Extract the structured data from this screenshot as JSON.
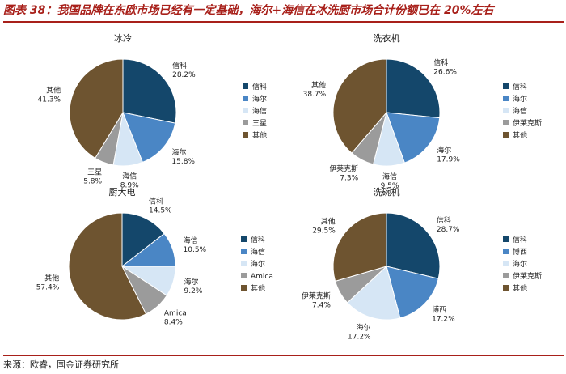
{
  "figure": {
    "title": "图表 38：我国品牌在东欧市场已经有一定基础，海尔+海信在冰洗厨市场合计份额已在 20%左右",
    "source": "来源：欧睿，国金证券研究所"
  },
  "chart_data": [
    {
      "type": "pie",
      "title": "冰冷",
      "slices": [
        {
          "label": "信科",
          "value": 28.2,
          "display": "28.2%",
          "color": "#14476b"
        },
        {
          "label": "海尔",
          "value": 15.8,
          "display": "15.8%",
          "color": "#4a86c5"
        },
        {
          "label": "海信",
          "value": 8.9,
          "display": "8.9%",
          "color": "#d6e6f5"
        },
        {
          "label": "三星",
          "value": 5.8,
          "display": "5.8%",
          "color": "#9b9b9b"
        },
        {
          "label": "其他",
          "value": 41.3,
          "display": "41.3%",
          "color": "#6e5430"
        }
      ],
      "legend": [
        "信科",
        "海尔",
        "海信",
        "三星",
        "其他"
      ]
    },
    {
      "type": "pie",
      "title": "洗衣机",
      "slices": [
        {
          "label": "信科",
          "value": 26.6,
          "display": "26.6%",
          "color": "#14476b"
        },
        {
          "label": "海尔",
          "value": 17.9,
          "display": "17.9%",
          "color": "#4a86c5"
        },
        {
          "label": "海信",
          "value": 9.5,
          "display": "9.5%",
          "color": "#d6e6f5"
        },
        {
          "label": "伊莱克斯",
          "value": 7.3,
          "display": "7.3%",
          "color": "#9b9b9b"
        },
        {
          "label": "其他",
          "value": 38.7,
          "display": "38.7%",
          "color": "#6e5430"
        }
      ],
      "legend": [
        "信科",
        "海尔",
        "海信",
        "伊莱克斯",
        "其他"
      ]
    },
    {
      "type": "pie",
      "title": "厨大电",
      "slices": [
        {
          "label": "信科",
          "value": 14.5,
          "display": "14.5%",
          "color": "#14476b"
        },
        {
          "label": "海信",
          "value": 10.5,
          "display": "10.5%",
          "color": "#4a86c5"
        },
        {
          "label": "海尔",
          "value": 9.2,
          "display": "9.2%",
          "color": "#d6e6f5"
        },
        {
          "label": "Amica",
          "value": 8.4,
          "display": "8.4%",
          "color": "#9b9b9b"
        },
        {
          "label": "其他",
          "value": 57.4,
          "display": "57.4%",
          "color": "#6e5430"
        }
      ],
      "legend": [
        "信科",
        "海信",
        "海尔",
        "Amica",
        "其他"
      ]
    },
    {
      "type": "pie",
      "title": "洗碗机",
      "slices": [
        {
          "label": "信科",
          "value": 28.7,
          "display": "28.7%",
          "color": "#14476b"
        },
        {
          "label": "博西",
          "value": 17.2,
          "display": "17.2%",
          "color": "#4a86c5"
        },
        {
          "label": "海尔",
          "value": 17.2,
          "display": "17.2%",
          "color": "#d6e6f5"
        },
        {
          "label": "伊莱克斯",
          "value": 7.4,
          "display": "7.4%",
          "color": "#9b9b9b"
        },
        {
          "label": "其他",
          "value": 29.5,
          "display": "29.5%",
          "color": "#6e5430"
        }
      ],
      "legend": [
        "信科",
        "博西",
        "海尔",
        "伊莱克斯",
        "其他"
      ]
    }
  ]
}
